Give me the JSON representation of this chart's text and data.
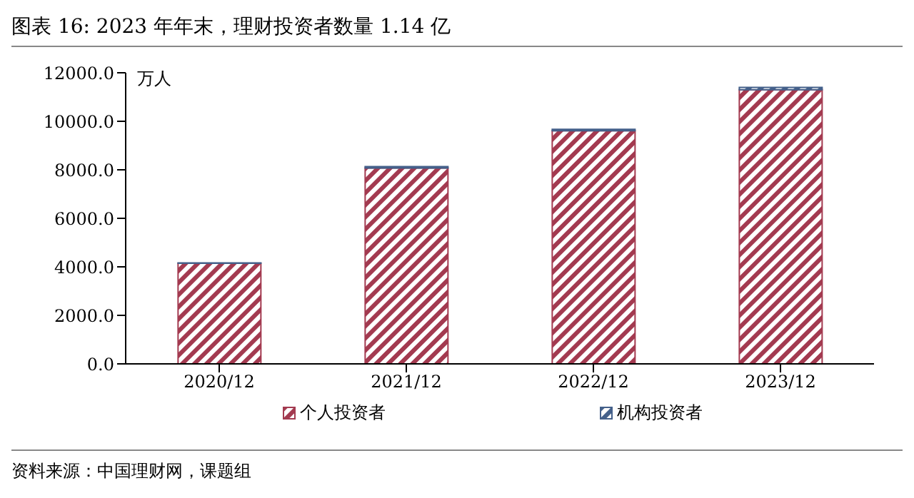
{
  "chart_data": {
    "type": "bar",
    "title": "图表 16: 2023 年年末，理财投资者数量 1.14 亿",
    "ylabel": "万人",
    "categories": [
      "2020/12",
      "2021/12",
      "2022/12",
      "2023/12"
    ],
    "series": [
      {
        "name": "个人投资者",
        "color": "#a33a50",
        "values": [
          4150,
          8070,
          9610,
          11300
        ]
      },
      {
        "name": "机构投资者",
        "color": "#44608a",
        "values": [
          10,
          60,
          60,
          100
        ]
      }
    ],
    "stacked": true,
    "ylim": [
      0,
      12000
    ],
    "yticks": [
      {
        "value": 0,
        "label": "0.0"
      },
      {
        "value": 2000,
        "label": "2000.0"
      },
      {
        "value": 4000,
        "label": "4000.0"
      },
      {
        "value": 6000,
        "label": "6000.0"
      },
      {
        "value": 8000,
        "label": "8000.0"
      },
      {
        "value": 10000,
        "label": "10000.0"
      },
      {
        "value": 12000,
        "label": "12000.0"
      }
    ],
    "legend": "bottom",
    "grid": false,
    "annotations": [
      "资料来源：中国理财网，课题组"
    ]
  }
}
